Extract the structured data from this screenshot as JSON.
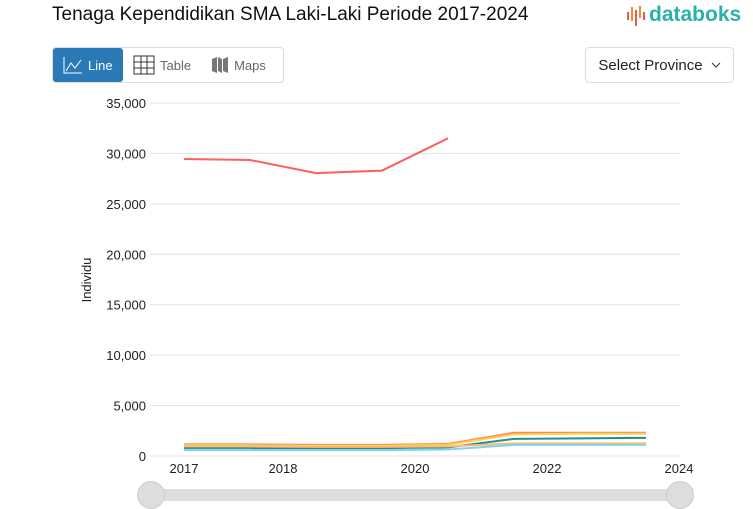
{
  "header": {
    "title": "Tenaga Kependidikan SMA Laki-Laki Periode 2017-2024",
    "logo_text": "databoks"
  },
  "tabs": [
    {
      "label": "Line",
      "icon": "line-chart-icon",
      "active": true
    },
    {
      "label": "Table",
      "icon": "table-icon",
      "active": false
    },
    {
      "label": "Maps",
      "icon": "map-icon",
      "active": false
    }
  ],
  "province_select": {
    "label": "Select Province",
    "icon": "chevron-down-icon"
  },
  "chart_data": {
    "type": "line",
    "title": "",
    "xlabel": "",
    "ylabel": "Individu",
    "ylim": [
      0,
      35000
    ],
    "yticks": [
      "0",
      "5,000",
      "10,000",
      "15,000",
      "20,000",
      "25,000",
      "30,000",
      "35,000"
    ],
    "xticks": [
      "2017",
      "2018",
      "2020",
      "2022",
      "2024"
    ],
    "x": [
      2017,
      2018,
      2019,
      2020,
      2021,
      2022,
      2023,
      2024
    ],
    "grid": true,
    "series": [
      {
        "color": "#ff5f5f",
        "values": [
          29450,
          29350,
          28050,
          28300,
          31500,
          null,
          null,
          null
        ]
      },
      {
        "color": "#ff8a50",
        "values": [
          1150,
          1150,
          1100,
          1100,
          1200,
          2300,
          2300,
          2300
        ]
      },
      {
        "color": "#ffd24d",
        "values": [
          1050,
          1050,
          1000,
          1000,
          1100,
          2150,
          2200,
          2200
        ]
      },
      {
        "color": "#1f8f8f",
        "values": [
          800,
          800,
          780,
          780,
          850,
          1700,
          1750,
          1800
        ]
      },
      {
        "color": "#ffb870",
        "values": [
          950,
          950,
          900,
          900,
          950,
          1250,
          1250,
          1250
        ]
      },
      {
        "color": "#7fd4f0",
        "values": [
          600,
          600,
          580,
          580,
          650,
          1100,
          1100,
          1100
        ]
      }
    ]
  }
}
